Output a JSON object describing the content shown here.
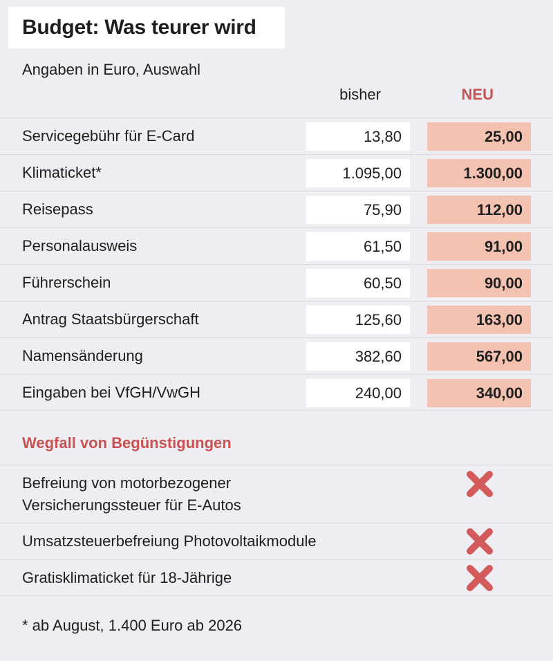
{
  "title": "Budget: Was teurer wird",
  "subtitle": "Angaben in Euro, Auswahl",
  "chart_data": {
    "type": "table",
    "columns": [
      "bisher",
      "NEU"
    ],
    "rows": [
      {
        "label": "Servicegebühr für E-Card",
        "bisher": "13,80",
        "neu": "25,00"
      },
      {
        "label": "Klimaticket*",
        "bisher": "1.095,00",
        "neu": "1.300,00"
      },
      {
        "label": "Reisepass",
        "bisher": "75,90",
        "neu": "112,00"
      },
      {
        "label": "Personalausweis",
        "bisher": "61,50",
        "neu": "91,00"
      },
      {
        "label": "Führerschein",
        "bisher": "60,50",
        "neu": "90,00"
      },
      {
        "label": "Antrag Staatsbürgerschaft",
        "bisher": "125,60",
        "neu": "163,00"
      },
      {
        "label": "Namensänderung",
        "bisher": "382,60",
        "neu": "567,00"
      },
      {
        "label": "Eingaben bei VfGH/VwGH",
        "bisher": "240,00",
        "neu": "340,00"
      }
    ],
    "colors": {
      "bisher": "#ffffff",
      "neu": "#f4c2b0",
      "accent": "#c95151"
    }
  },
  "section": {
    "title": "Wegfall von Begünstigungen",
    "items": [
      {
        "lines": [
          "Befreiung von motorbezogener",
          "Versicherungssteuer für E-Autos"
        ],
        "icon": "cross-icon"
      },
      {
        "lines": [
          "Umsatzsteuerbefreiung Photovoltaikmodule"
        ],
        "icon": "cross-icon"
      },
      {
        "lines": [
          "Gratisklimaticket für 18-Jährige"
        ],
        "icon": "cross-icon"
      }
    ]
  },
  "footnote": "* ab August, 1.400 Euro ab 2026"
}
